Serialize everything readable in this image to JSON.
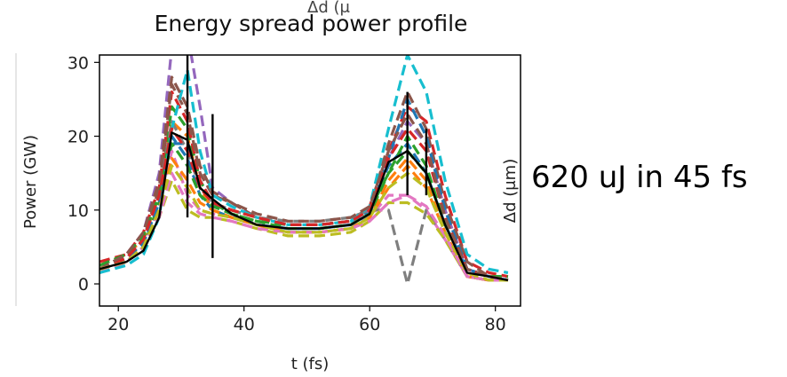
{
  "annotation": "620 uJ in 45 fs",
  "chart_data": {
    "type": "line",
    "title": "Energy spread power profile",
    "xlabel": "t (fs)",
    "ylabel": "Power (GW)",
    "right_label": "Δd (μm)",
    "top_artifact": "Δd (μ",
    "xlim": [
      17,
      84
    ],
    "ylim": [
      -3,
      31
    ],
    "xticks": [
      20,
      40,
      60,
      80
    ],
    "yticks": [
      0,
      10,
      20,
      30
    ],
    "x": [
      17,
      21.3,
      24,
      26.5,
      28.5,
      31,
      33,
      35,
      38,
      42,
      47,
      52,
      57,
      60,
      63,
      66,
      69,
      72,
      75.5,
      79,
      82
    ],
    "series": [
      {
        "color": "#1f77b4",
        "values": [
          2,
          3,
          5,
          10,
          19,
          19,
          14,
          11,
          9.5,
          8,
          7.5,
          7.5,
          8,
          10,
          16,
          19,
          15,
          8,
          2,
          1,
          0.5
        ]
      },
      {
        "color": "#ff7f0e",
        "values": [
          2.5,
          4,
          6,
          12,
          22,
          20,
          13,
          10,
          9,
          8,
          7,
          7,
          7.5,
          9,
          14,
          17,
          14,
          7,
          1,
          0.5,
          0.5
        ]
      },
      {
        "color": "#2ca02c",
        "values": [
          1.5,
          3,
          5,
          11,
          24,
          21,
          14,
          11,
          9.5,
          8.5,
          8,
          8,
          8.5,
          10,
          15,
          20,
          16,
          8,
          2,
          1,
          1
        ]
      },
      {
        "color": "#d62728",
        "values": [
          3,
          4,
          7,
          13,
          26,
          22,
          14,
          11,
          10,
          9,
          8,
          8,
          8.5,
          10.5,
          18,
          24,
          22,
          12,
          3,
          1.5,
          1
        ]
      },
      {
        "color": "#9467bd",
        "values": [
          2,
          4,
          7,
          15,
          32,
          34,
          24,
          13,
          11,
          9,
          8,
          8,
          8.5,
          10,
          17,
          22,
          19,
          10,
          2,
          1,
          0.5
        ]
      },
      {
        "color": "#8c564b",
        "values": [
          2,
          4,
          6,
          13,
          27,
          23,
          15,
          12,
          11,
          9,
          8,
          8,
          8.5,
          10,
          19,
          26,
          21,
          11,
          3,
          1,
          0.5
        ]
      },
      {
        "color": "#e377c2",
        "values": [
          1.5,
          3,
          5,
          10,
          18,
          12,
          10,
          9.5,
          9,
          8,
          7.5,
          7.5,
          8,
          9,
          12,
          12,
          10,
          6,
          1,
          0.5,
          0.5
        ]
      },
      {
        "color": "#7f7f7f",
        "values": [
          2,
          3.5,
          6,
          12,
          22,
          18,
          13,
          11,
          10,
          9,
          8.5,
          8.5,
          9,
          10,
          10,
          0,
          10,
          6,
          1,
          0.5,
          0.5
        ]
      },
      {
        "color": "#bcbd22",
        "values": [
          2,
          3,
          5,
          9,
          14,
          10,
          9,
          9,
          8.5,
          7.5,
          6.5,
          6.5,
          7,
          8.5,
          11,
          11,
          9.5,
          6,
          1,
          0.5,
          0.5
        ]
      },
      {
        "color": "#17becf",
        "values": [
          1.5,
          2.5,
          4,
          9,
          21,
          29,
          18,
          12,
          10.5,
          9,
          8,
          8,
          8.5,
          10.5,
          21,
          31,
          26,
          14,
          4,
          2,
          1.5
        ]
      },
      {
        "color": "#1f77b4",
        "values": [
          2,
          3.5,
          5.5,
          11,
          20,
          17,
          12,
          10,
          9,
          8,
          7.5,
          7.5,
          8,
          9.5,
          17,
          25,
          20,
          10,
          2,
          1,
          0.5
        ]
      },
      {
        "color": "#ff7f0e",
        "values": [
          2,
          3,
          5,
          10,
          17,
          14,
          11,
          10,
          9,
          8,
          7,
          7,
          7.5,
          9,
          13,
          16,
          13,
          7,
          1,
          0.5,
          0.5
        ]
      },
      {
        "color": "#2ca02c",
        "values": [
          2.5,
          4,
          6.5,
          12,
          19,
          16,
          12,
          10.5,
          9.5,
          8.5,
          7.5,
          7.5,
          8,
          9.5,
          15,
          18,
          15,
          8,
          2,
          1,
          1
        ]
      },
      {
        "color": "#d62728",
        "values": [
          2,
          3.5,
          6,
          12,
          21,
          18,
          13,
          11,
          10,
          9,
          8,
          8,
          8.5,
          10,
          17,
          21,
          18,
          9,
          2,
          1,
          0.5
        ]
      },
      {
        "color": "#8c564b",
        "values": [
          2,
          4,
          7,
          14,
          28,
          24,
          16,
          12.5,
          11,
          9.5,
          8.5,
          8.5,
          9,
          10.5,
          18,
          23,
          19,
          9,
          2,
          1,
          0.5
        ]
      },
      {
        "color": "#e377c2",
        "values": [
          2,
          3,
          5,
          9,
          15,
          11,
          9.5,
          9,
          8.5,
          7.5,
          7,
          7,
          7.5,
          8.5,
          11,
          12,
          10.5,
          6.5,
          1,
          0.5,
          0.5
        ]
      },
      {
        "color": "#bcbd22",
        "values": [
          2,
          3,
          5,
          10,
          16,
          13,
          10,
          9.5,
          9,
          8,
          7,
          7,
          7.5,
          9,
          13,
          15,
          13,
          7,
          1.5,
          0.5,
          0.5
        ]
      },
      {
        "color": "#000000",
        "dashed": false,
        "width": 2.4,
        "values": [
          2,
          3,
          4.5,
          9,
          20.5,
          19.5,
          13,
          11.5,
          9.5,
          8,
          7.5,
          7.5,
          8,
          9.5,
          16.5,
          18,
          15,
          8,
          1.5,
          1,
          0.5
        ]
      }
    ],
    "error_bars": [
      {
        "x": 31,
        "low": 9,
        "high": 31
      },
      {
        "x": 35,
        "low": 3.5,
        "high": 23
      },
      {
        "x": 66,
        "low": 12,
        "high": 26
      },
      {
        "x": 69,
        "low": 12,
        "high": 21
      }
    ]
  }
}
